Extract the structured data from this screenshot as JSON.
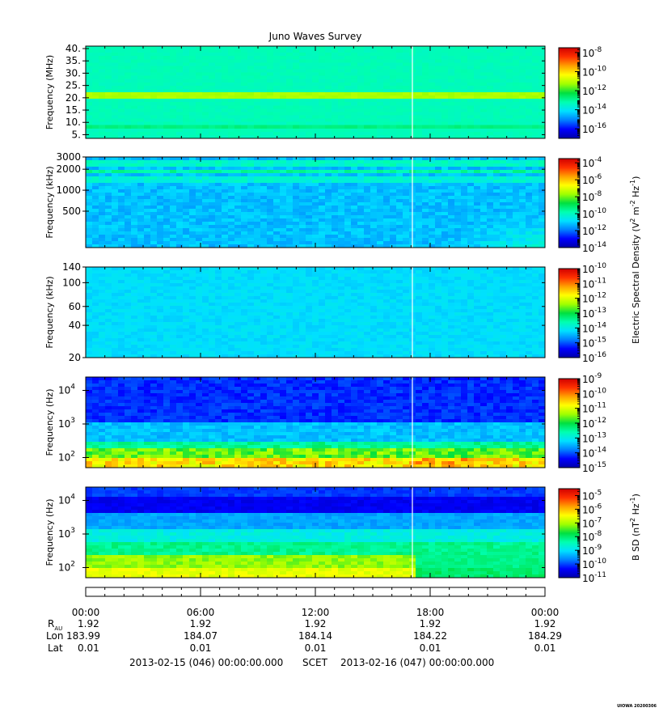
{
  "chart_data": {
    "title": "Juno Waves Survey",
    "type": "heatmap",
    "colors": {
      "colormap": [
        "#0000a8",
        "#0000ff",
        "#0080ff",
        "#00e0ff",
        "#00ffb0",
        "#00e040",
        "#a0ff00",
        "#ffff00",
        "#ffa000",
        "#ff3000",
        "#d00000"
      ],
      "data_gap_line": "#ffffff"
    },
    "panels": [
      {
        "id": "p1",
        "ylabel": "Frequency (MHz)",
        "yscale": "linear",
        "ylim": [
          3.5,
          41
        ],
        "yticks": [
          {
            "v": 5,
            "label": "5."
          },
          {
            "v": 10,
            "label": "10."
          },
          {
            "v": 15,
            "label": "15."
          },
          {
            "v": 20,
            "label": "20."
          },
          {
            "v": 25,
            "label": "25."
          },
          {
            "v": 30,
            "label": "30."
          },
          {
            "v": 35,
            "label": "35."
          },
          {
            "v": 40,
            "label": "40."
          }
        ],
        "colorbar": {
          "scale": "log",
          "range": [
            -17,
            -7.5
          ],
          "ticks": [
            -16,
            -14,
            -12,
            -10,
            -8
          ]
        },
        "background_level": -13.3,
        "bands": [
          {
            "center": 21,
            "width": 1.2,
            "level": -11.2
          },
          {
            "center": 8.6,
            "width": 0.8,
            "level": -12.8
          }
        ],
        "gradient": "none"
      },
      {
        "id": "p2",
        "ylabel": "Frequency (kHz)",
        "yscale": "log",
        "ylim": [
          150,
          3000
        ],
        "yticks": [
          {
            "v": 500,
            "label": "500"
          },
          {
            "v": 1000,
            "label": "1000"
          },
          {
            "v": 2000,
            "label": "2000"
          },
          {
            "v": 3000,
            "label": "3000"
          }
        ],
        "colorbar": {
          "scale": "log",
          "range": [
            -14,
            -3.5
          ],
          "ticks": [
            -14,
            -12,
            -10,
            -8,
            -6,
            -4
          ]
        },
        "background_level": -11.2,
        "bands": [
          {
            "center": 2400,
            "width": 300,
            "level": -10.1
          },
          {
            "center": 1450,
            "width": 200,
            "level": -10.3
          },
          {
            "center": 1800,
            "width": 100,
            "level": -9.7
          }
        ],
        "gradient": "late-rise"
      },
      {
        "id": "p3",
        "ylabel": "Frequency (kHz)",
        "yscale": "log",
        "ylim": [
          20,
          140
        ],
        "yticks": [
          {
            "v": 20,
            "label": "20"
          },
          {
            "v": 40,
            "label": "40"
          },
          {
            "v": 60,
            "label": "60"
          },
          {
            "v": 100,
            "label": "100"
          },
          {
            "v": 140,
            "label": "140"
          }
        ],
        "colorbar": {
          "scale": "log",
          "range": [
            -16,
            -10
          ],
          "ticks": [
            -16,
            -15,
            -14,
            -13,
            -12,
            -11,
            -10
          ]
        },
        "background_level": -14.2,
        "bands": [],
        "gradient": "none"
      },
      {
        "id": "p4",
        "ylabel": "Frequency (Hz)",
        "yscale": "log",
        "ylim": [
          50,
          25000
        ],
        "yticks": [
          {
            "v": 100,
            "label": "10",
            "exp": "2"
          },
          {
            "v": 1000,
            "label": "10",
            "exp": "3"
          },
          {
            "v": 10000,
            "label": "10",
            "exp": "4"
          }
        ],
        "colorbar": {
          "scale": "log",
          "range": [
            -15,
            -9
          ],
          "ticks": [
            -15,
            -14,
            -13,
            -12,
            -11,
            -10,
            -9
          ]
        },
        "background_level": -14.3,
        "bands": [],
        "gradient": "low-strong"
      },
      {
        "id": "p5",
        "ylabel": "Frequency (Hz)",
        "yscale": "log",
        "ylim": [
          50,
          25000
        ],
        "yticks": [
          {
            "v": 100,
            "label": "10",
            "exp": "2"
          },
          {
            "v": 1000,
            "label": "10",
            "exp": "3"
          },
          {
            "v": 10000,
            "label": "10",
            "exp": "4"
          }
        ],
        "colorbar": {
          "scale": "log",
          "range": [
            -11,
            -4.5
          ],
          "ticks": [
            -11,
            -10,
            -9,
            -8,
            -7,
            -6,
            -5
          ]
        },
        "background_level": -10.5,
        "bands": [],
        "gradient": "magnetic"
      }
    ],
    "colorbar_labels": {
      "electric": "Electric Spectral Density (V",
      "electric_sup1": "2",
      "electric_mid": " m",
      "electric_sup2": "-2",
      "electric_mid2": " Hz",
      "electric_sup3": "-1",
      "electric_end": ")",
      "magnetic": "B SD (nT",
      "magnetic_sup1": "2",
      "magnetic_mid": " Hz",
      "magnetic_sup2": "-1",
      "magnetic_end": ")"
    },
    "data_gap_time": 17.07,
    "time_axis": {
      "xlim": [
        0,
        24
      ],
      "ticks": [
        {
          "t": 0,
          "label": "00:00",
          "rau": "1.92",
          "lon": "183.99",
          "lat": "0.01"
        },
        {
          "t": 6,
          "label": "06:00",
          "rau": "1.92",
          "lon": "184.07",
          "lat": "0.01"
        },
        {
          "t": 12,
          "label": "12:00",
          "rau": "1.92",
          "lon": "184.14",
          "lat": "0.01"
        },
        {
          "t": 18,
          "label": "18:00",
          "rau": "1.92",
          "lon": "184.22",
          "lat": "0.01"
        },
        {
          "t": 24,
          "label": "00:00",
          "rau": "1.92",
          "lon": "184.29",
          "lat": "0.01"
        }
      ],
      "row_labels": {
        "rau": "R",
        "rau_sub": "AU",
        "lon": "Lon",
        "lat": "Lat"
      },
      "start_label": "2013-02-15 (046) 00:00:00.000",
      "scet_label": "SCET",
      "end_label": "2013-02-16 (047) 00:00:00.000"
    },
    "footer_stamp": "UIOWA 20200306"
  }
}
